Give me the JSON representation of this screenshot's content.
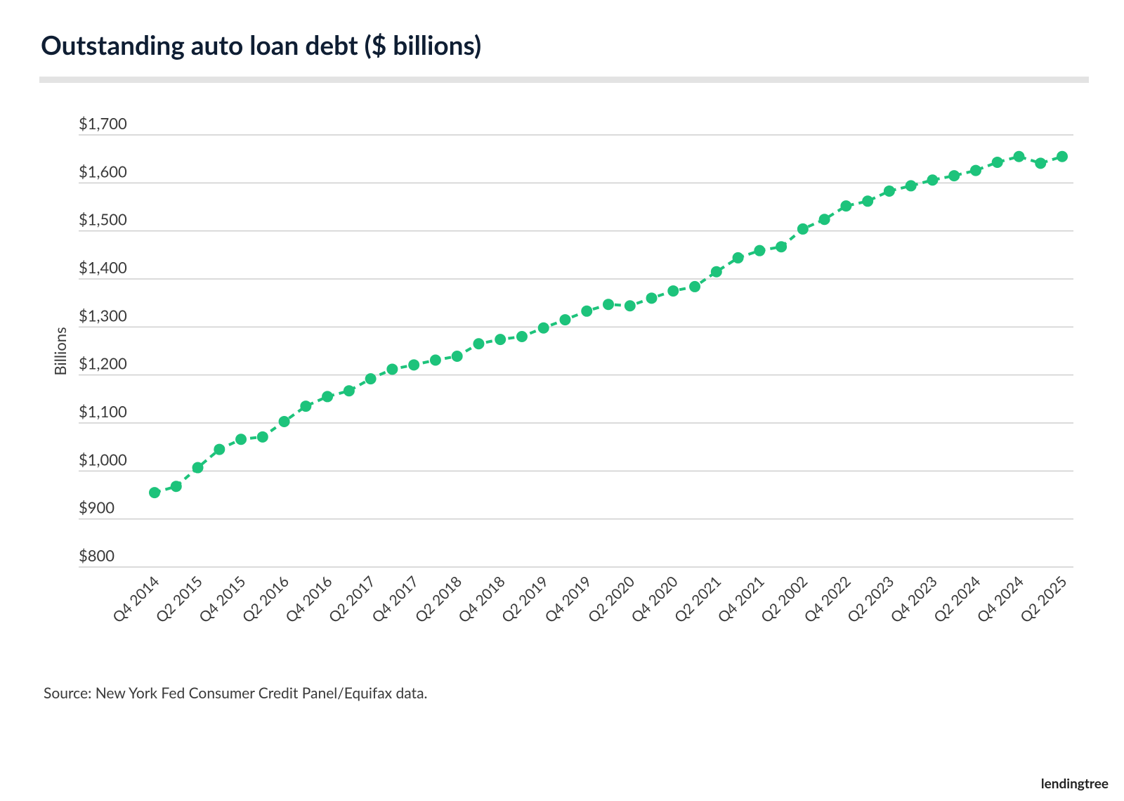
{
  "chart_data": {
    "type": "line",
    "title": "Outstanding auto loan debt ($ billions)",
    "y_label": "Billions",
    "source": "Source: New York Fed Consumer Credit Panel/Equifax data.",
    "brand": "lendingtree",
    "categories": [
      "Q4 2014",
      null,
      "Q2 2015",
      null,
      "Q4 2015",
      null,
      "Q2 2016",
      null,
      "Q4 2016",
      null,
      "Q2 2017",
      null,
      "Q4 2017",
      null,
      "Q2 2018",
      null,
      "Q4 2018",
      null,
      "Q2 2019",
      null,
      "Q4 2019",
      null,
      "Q2 2020",
      null,
      "Q4 2020",
      null,
      "Q2 2021",
      null,
      "Q4 2021",
      null,
      "Q2 2002",
      null,
      "Q4 2022",
      null,
      "Q2 2023",
      null,
      "Q4 2023",
      null,
      "Q2 2024",
      null,
      "Q4 2024",
      null,
      "Q2 2025"
    ],
    "values": [
      955,
      968,
      1007,
      1045,
      1066,
      1071,
      1103,
      1135,
      1155,
      1167,
      1192,
      1212,
      1221,
      1231,
      1239,
      1265,
      1274,
      1280,
      1298,
      1315,
      1333,
      1347,
      1344,
      1360,
      1375,
      1384,
      1415,
      1444,
      1459,
      1467,
      1504,
      1524,
      1552,
      1562,
      1583,
      1594,
      1606,
      1615,
      1626,
      1643,
      1655,
      1641,
      1655
    ],
    "color": "#1dc37b",
    "ylim": [
      800,
      1700
    ],
    "yticks": [
      {
        "value": 800,
        "label": "$800"
      },
      {
        "value": 900,
        "label": "$900"
      },
      {
        "value": 1000,
        "label": "$1,000"
      },
      {
        "value": 1100,
        "label": "$1,100"
      },
      {
        "value": 1200,
        "label": "$1,200"
      },
      {
        "value": 1300,
        "label": "$1,300"
      },
      {
        "value": 1400,
        "label": "$1,400"
      },
      {
        "value": 1500,
        "label": "$1,500"
      },
      {
        "value": 1600,
        "label": "$1,600"
      },
      {
        "value": 1700,
        "label": "$1,700"
      }
    ],
    "grid": true
  }
}
